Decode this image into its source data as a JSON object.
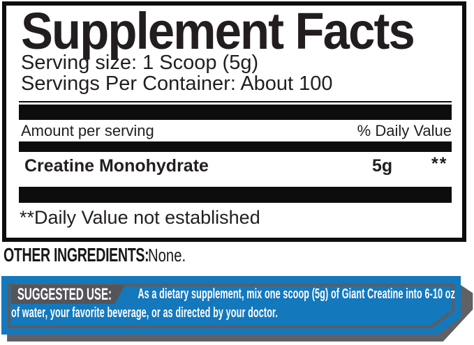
{
  "label": {
    "title": "Supplement Facts",
    "serving_size": "Serving size: 1 Scoop (5g)",
    "servings_per_container": "Servings Per Container: About 100",
    "column_headers": {
      "amount": "Amount per serving",
      "daily_value": "% Daily Value"
    },
    "rows": [
      {
        "name": "Creatine Monohydrate",
        "amount": "5g",
        "daily_value": "**"
      }
    ],
    "footnote": "**Daily Value not established"
  },
  "other_ingredients": {
    "label": "OTHER INGREDIENTS:",
    "value": "None."
  },
  "suggested_use": {
    "label": "SUGGESTED USE:",
    "text": "As a dietary supplement, mix one scoop (5g) of Giant Creatine into 6-10 oz of water, your favorite beverage, or as directed by your doctor."
  },
  "colors": {
    "accent_blue": "#1478bd",
    "panel_gray": "#54555a",
    "shadow_gray": "#606164",
    "ink_black": "#0d0d0d"
  }
}
